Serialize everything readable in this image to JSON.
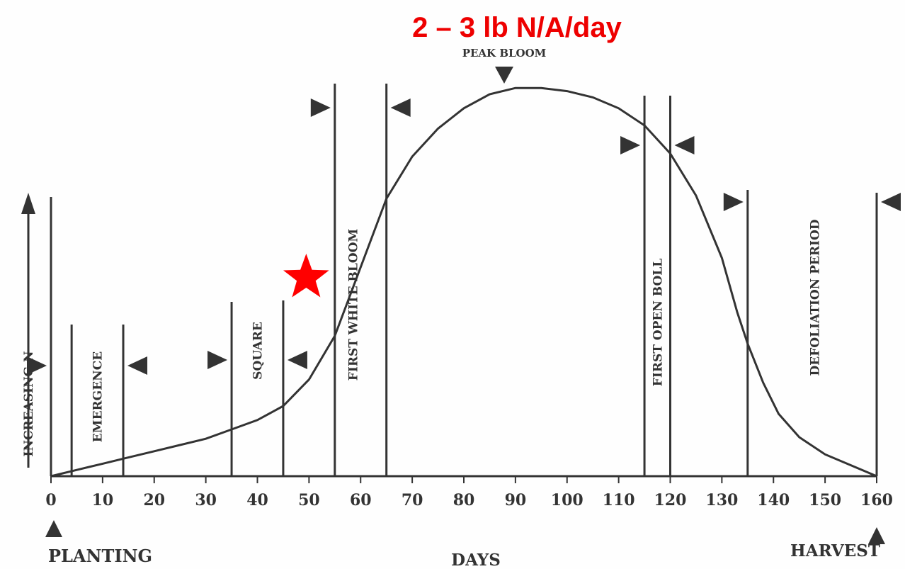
{
  "headline": "2 – 3 lb N/A/day",
  "colors": {
    "ink": "#333333",
    "headline": "#ee0000",
    "star": "#ff0000"
  },
  "markers": {
    "star": {
      "shape": "five-point-star",
      "at_day": 50
    }
  },
  "chart_data": {
    "type": "line",
    "title": "",
    "xlabel": "DAYS",
    "ylabel": "INCREASING N",
    "xlim": [
      0,
      160
    ],
    "x_ticks": [
      0,
      10,
      20,
      30,
      40,
      50,
      60,
      70,
      80,
      90,
      100,
      110,
      120,
      130,
      140,
      150,
      160
    ],
    "y_scale": "relative, unlabeled",
    "grid": false,
    "series": [
      {
        "x": [
          0,
          5,
          10,
          15,
          20,
          25,
          30,
          35,
          40,
          45,
          50,
          55,
          65,
          70,
          75,
          80,
          85,
          90,
          95,
          100,
          105,
          110,
          115,
          120,
          125,
          130,
          133,
          135,
          138,
          141,
          145,
          150,
          155,
          160
        ],
        "y": [
          0,
          4,
          8,
          12,
          16,
          20,
          24,
          30,
          36,
          45,
          62,
          90,
          178,
          205,
          223,
          236,
          245,
          249,
          249,
          247,
          243,
          236,
          225,
          207,
          180,
          140,
          105,
          85,
          60,
          40,
          25,
          14,
          7,
          0
        ],
        "note_break": "vertical jump at day 55–65 (first white bloom)"
      }
    ],
    "stage_markers": [
      {
        "day": 0,
        "label": ""
      },
      {
        "day": 4,
        "label": ""
      },
      {
        "day": 14,
        "label": "EMERGENCE"
      },
      {
        "day": 35,
        "label": ""
      },
      {
        "day": 45,
        "label": "SQUARE"
      },
      {
        "day": 55,
        "label": ""
      },
      {
        "day": 65,
        "label": "FIRST WHITE BLOOM"
      },
      {
        "day": 115,
        "label": ""
      },
      {
        "day": 120,
        "label": "FIRST OPEN BOLL"
      },
      {
        "day": 135,
        "label": "DEFOLIATION PERIOD"
      },
      {
        "day": 160,
        "label": ""
      }
    ],
    "annotations": [
      {
        "text": "PEAK BLOOM",
        "day": 88
      },
      {
        "text": "PLANTING",
        "day": 0
      },
      {
        "text": "HARVEST",
        "day": 160
      }
    ]
  }
}
